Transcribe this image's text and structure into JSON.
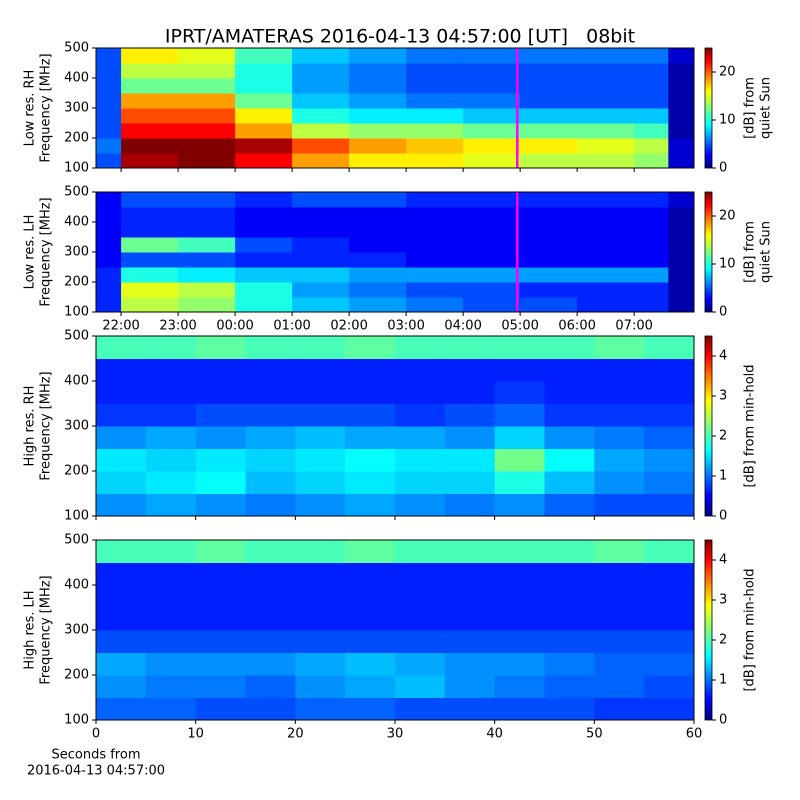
{
  "title": "IPRT/AMATERAS 2016-04-13 04:57:00 [UT]   08bit",
  "chart_data": [
    {
      "type": "heatmap",
      "ylabel": [
        "Low res. RH",
        "Frequency [MHz]"
      ],
      "clabel": [
        "[dB] from",
        "quiet Sun"
      ],
      "xlim": [
        21.56,
        32.05
      ],
      "ylim": [
        100,
        500
      ],
      "yticks": [
        100,
        200,
        300,
        400,
        500
      ],
      "clim": [
        0,
        25
      ],
      "cticks": [
        0,
        10,
        20
      ],
      "xbins": [
        21.56,
        22,
        23,
        24,
        25,
        26,
        27,
        28,
        29,
        30,
        31,
        31.6,
        32.05
      ],
      "ybins": [
        100,
        150,
        200,
        250,
        300,
        350,
        400,
        450,
        500
      ],
      "z": [
        [
          5,
          24,
          25,
          22,
          18,
          16,
          16,
          15,
          14,
          14,
          13,
          2
        ],
        [
          6,
          25,
          25,
          24,
          20,
          18,
          17,
          16,
          16,
          15,
          14,
          2
        ],
        [
          5,
          22,
          22,
          18,
          14,
          13,
          13,
          12,
          12,
          12,
          11,
          1
        ],
        [
          5,
          20,
          20,
          16,
          10,
          9,
          9,
          8,
          8,
          8,
          8,
          1
        ],
        [
          5,
          18,
          18,
          12,
          8,
          7,
          6,
          6,
          5,
          5,
          5,
          1
        ],
        [
          5,
          12,
          12,
          10,
          7,
          6,
          5,
          5,
          5,
          5,
          5,
          1
        ],
        [
          5,
          14,
          14,
          10,
          7,
          6,
          5,
          5,
          5,
          5,
          5,
          1
        ],
        [
          5,
          16,
          15,
          11,
          8,
          7,
          6,
          6,
          6,
          6,
          6,
          2
        ]
      ],
      "vline": {
        "x": 28.95,
        "color": "#ff00ff"
      }
    },
    {
      "type": "heatmap",
      "ylabel": [
        "Low res. LH",
        "Frequency [MHz]"
      ],
      "clabel": [
        "[dB] from",
        "quiet Sun"
      ],
      "xlim": [
        21.56,
        32.05
      ],
      "ylim": [
        100,
        500
      ],
      "yticks": [
        100,
        200,
        300,
        400,
        500
      ],
      "xticks": [
        {
          "value": 22,
          "label": "22:00"
        },
        {
          "value": 23,
          "label": "23:00"
        },
        {
          "value": 24,
          "label": "00:00"
        },
        {
          "value": 25,
          "label": "01:00"
        },
        {
          "value": 26,
          "label": "02:00"
        },
        {
          "value": 27,
          "label": "03:00"
        },
        {
          "value": 28,
          "label": "04:00"
        },
        {
          "value": 29,
          "label": "05:00"
        },
        {
          "value": 30,
          "label": "06:00"
        },
        {
          "value": 31,
          "label": "07:00"
        }
      ],
      "clim": [
        0,
        25
      ],
      "cticks": [
        0,
        10,
        20
      ],
      "xbins": [
        21.56,
        22,
        23,
        24,
        25,
        26,
        27,
        28,
        29,
        30,
        31,
        31.6,
        32.05
      ],
      "ybins": [
        100,
        150,
        200,
        250,
        300,
        350,
        400,
        450,
        500
      ],
      "z": [
        [
          4,
          14,
          13,
          10,
          8,
          7,
          6,
          5,
          5,
          4,
          4,
          1
        ],
        [
          4,
          15,
          14,
          10,
          7,
          6,
          5,
          5,
          4,
          4,
          4,
          1
        ],
        [
          4,
          10,
          9,
          8,
          8,
          7,
          7,
          7,
          7,
          7,
          7,
          1
        ],
        [
          3,
          5,
          5,
          4,
          4,
          4,
          3,
          3,
          3,
          3,
          3,
          1
        ],
        [
          3,
          12,
          11,
          5,
          4,
          3,
          3,
          3,
          3,
          3,
          3,
          1
        ],
        [
          3,
          4,
          4,
          3,
          3,
          3,
          3,
          3,
          3,
          3,
          3,
          1
        ],
        [
          3,
          4,
          4,
          3,
          3,
          3,
          3,
          3,
          3,
          3,
          3,
          1
        ],
        [
          3,
          5,
          5,
          4,
          5,
          5,
          4,
          4,
          4,
          4,
          4,
          2
        ]
      ],
      "vline": {
        "x": 28.95,
        "color": "#ff00ff"
      }
    },
    {
      "type": "heatmap",
      "ylabel": [
        "High res. RH",
        "Frequency [MHz]"
      ],
      "clabel": [
        "[dB] from min-hold"
      ],
      "xlim": [
        0,
        60
      ],
      "ylim": [
        100,
        500
      ],
      "yticks": [
        100,
        200,
        300,
        400,
        500
      ],
      "clim": [
        0,
        4.5
      ],
      "cticks": [
        0,
        1,
        2,
        3,
        4
      ],
      "xbins": [
        0,
        5,
        10,
        15,
        20,
        25,
        30,
        35,
        40,
        45,
        50,
        55,
        60
      ],
      "ybins": [
        100,
        150,
        200,
        250,
        300,
        350,
        400,
        450,
        500
      ],
      "z": [
        [
          1.2,
          1.3,
          1.2,
          1.1,
          1.2,
          1.3,
          1.2,
          1.1,
          1.2,
          1.0,
          0.9,
          0.9
        ],
        [
          1.5,
          1.6,
          1.7,
          1.4,
          1.5,
          1.6,
          1.5,
          1.5,
          1.8,
          1.4,
          1.2,
          1.1
        ],
        [
          1.6,
          1.5,
          1.6,
          1.5,
          1.6,
          1.7,
          1.6,
          1.6,
          2.2,
          1.7,
          1.3,
          1.2
        ],
        [
          1.2,
          1.3,
          1.2,
          1.3,
          1.4,
          1.3,
          1.3,
          1.2,
          1.5,
          1.2,
          1.1,
          1.0
        ],
        [
          0.8,
          0.8,
          0.9,
          0.9,
          0.9,
          0.9,
          0.8,
          0.9,
          1.0,
          0.8,
          0.8,
          0.8
        ],
        [
          0.7,
          0.7,
          0.7,
          0.7,
          0.7,
          0.7,
          0.7,
          0.7,
          0.8,
          0.7,
          0.7,
          0.7
        ],
        [
          0.7,
          0.7,
          0.7,
          0.7,
          0.7,
          0.7,
          0.7,
          0.7,
          0.7,
          0.7,
          0.7,
          0.7
        ],
        [
          2.0,
          2.0,
          2.1,
          2.0,
          2.0,
          2.1,
          2.0,
          2.0,
          2.0,
          2.0,
          2.1,
          2.0
        ]
      ]
    },
    {
      "type": "heatmap",
      "ylabel": [
        "High res. LH",
        "Frequency [MHz]"
      ],
      "clabel": [
        "[dB] from min-hold"
      ],
      "xlabel": [
        "Seconds from",
        "2016-04-13 04:57:00"
      ],
      "xlim": [
        0,
        60
      ],
      "ylim": [
        100,
        500
      ],
      "yticks": [
        100,
        200,
        300,
        400,
        500
      ],
      "xticks": [
        0,
        10,
        20,
        30,
        40,
        50,
        60
      ],
      "clim": [
        0,
        4.5
      ],
      "cticks": [
        0,
        1,
        2,
        3,
        4
      ],
      "xbins": [
        0,
        5,
        10,
        15,
        20,
        25,
        30,
        35,
        40,
        45,
        50,
        55,
        60
      ],
      "ybins": [
        100,
        150,
        200,
        250,
        300,
        350,
        400,
        450,
        500
      ],
      "z": [
        [
          1.0,
          1.0,
          0.9,
          0.9,
          1.0,
          1.0,
          0.9,
          0.9,
          0.9,
          0.9,
          0.8,
          0.8
        ],
        [
          1.2,
          1.1,
          1.1,
          1.0,
          1.2,
          1.3,
          1.4,
          1.2,
          1.1,
          1.0,
          1.0,
          0.9
        ],
        [
          1.3,
          1.2,
          1.2,
          1.2,
          1.3,
          1.4,
          1.3,
          1.2,
          1.2,
          1.1,
          1.0,
          1.0
        ],
        [
          0.9,
          0.9,
          0.9,
          0.9,
          0.9,
          0.9,
          0.9,
          0.9,
          0.9,
          0.9,
          0.9,
          0.9
        ],
        [
          0.7,
          0.7,
          0.7,
          0.7,
          0.7,
          0.7,
          0.7,
          0.7,
          0.7,
          0.7,
          0.7,
          0.7
        ],
        [
          0.7,
          0.7,
          0.7,
          0.7,
          0.7,
          0.7,
          0.7,
          0.7,
          0.7,
          0.7,
          0.7,
          0.7
        ],
        [
          0.7,
          0.7,
          0.7,
          0.7,
          0.7,
          0.7,
          0.7,
          0.7,
          0.7,
          0.7,
          0.7,
          0.7
        ],
        [
          2.0,
          2.0,
          2.1,
          2.0,
          2.0,
          2.1,
          2.0,
          2.0,
          2.0,
          2.0,
          2.1,
          2.0
        ]
      ]
    }
  ]
}
